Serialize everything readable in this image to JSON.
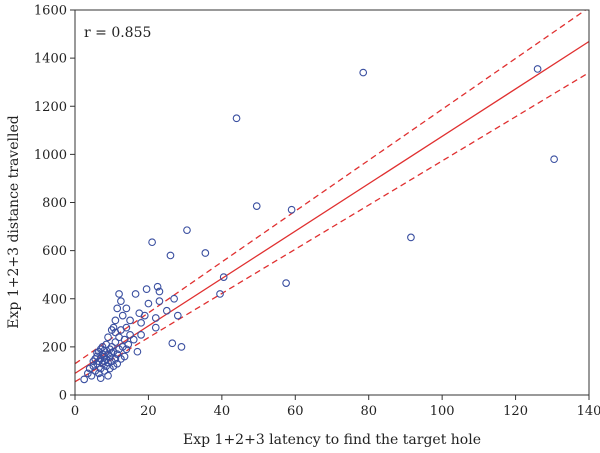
{
  "chart_data": {
    "type": "scatter",
    "xlabel": "Exp 1+2+3 latency to find the target hole",
    "ylabel": "Exp 1+2+3 distance travelled",
    "annotation": "r = 0.855",
    "xlim": [
      0,
      140
    ],
    "ylim": [
      0,
      1600
    ],
    "xticks": [
      0,
      20,
      40,
      60,
      80,
      100,
      120,
      140
    ],
    "yticks": [
      0,
      200,
      400,
      600,
      800,
      1000,
      1200,
      1400,
      1600
    ],
    "grid": false,
    "colors": {
      "points": "#3a4fa0",
      "fit": "#e03030"
    },
    "fit_line": {
      "slope": 9.85,
      "intercept": 90
    },
    "confidence_upper": [
      [
        0,
        130
      ],
      [
        140,
        1610
      ]
    ],
    "confidence_lower": [
      [
        0,
        55
      ],
      [
        140,
        1340
      ]
    ],
    "points": [
      [
        2.5,
        65
      ],
      [
        3.5,
        90
      ],
      [
        4,
        110
      ],
      [
        4.5,
        80
      ],
      [
        5,
        120
      ],
      [
        5,
        140
      ],
      [
        5.5,
        100
      ],
      [
        5.5,
        150
      ],
      [
        6,
        130
      ],
      [
        6,
        160
      ],
      [
        6,
        175
      ],
      [
        6.5,
        90
      ],
      [
        6.5,
        140
      ],
      [
        6.5,
        180
      ],
      [
        7,
        70
      ],
      [
        7,
        110
      ],
      [
        7,
        150
      ],
      [
        7,
        190
      ],
      [
        7.5,
        130
      ],
      [
        7.5,
        170
      ],
      [
        7.5,
        200
      ],
      [
        8,
        100
      ],
      [
        8,
        140
      ],
      [
        8,
        160
      ],
      [
        8,
        185
      ],
      [
        8.5,
        120
      ],
      [
        8.5,
        150
      ],
      [
        8.5,
        210
      ],
      [
        9,
        80
      ],
      [
        9,
        135
      ],
      [
        9,
        170
      ],
      [
        9,
        240
      ],
      [
        9.5,
        110
      ],
      [
        9.5,
        160
      ],
      [
        9.5,
        190
      ],
      [
        10,
        140
      ],
      [
        10,
        175
      ],
      [
        10,
        200
      ],
      [
        10,
        270
      ],
      [
        10.5,
        120
      ],
      [
        10.5,
        180
      ],
      [
        10.5,
        280
      ],
      [
        11,
        150
      ],
      [
        11,
        220
      ],
      [
        11,
        260
      ],
      [
        11,
        310
      ],
      [
        11.5,
        130
      ],
      [
        11.5,
        170
      ],
      [
        11.5,
        360
      ],
      [
        12,
        190
      ],
      [
        12,
        240
      ],
      [
        12,
        420
      ],
      [
        12.5,
        150
      ],
      [
        12.5,
        270
      ],
      [
        12.5,
        390
      ],
      [
        13,
        200
      ],
      [
        13,
        330
      ],
      [
        13.5,
        160
      ],
      [
        13.5,
        230
      ],
      [
        14,
        190
      ],
      [
        14,
        280
      ],
      [
        14,
        360
      ],
      [
        14.5,
        210
      ],
      [
        15,
        250
      ],
      [
        15,
        310
      ],
      [
        16,
        230
      ],
      [
        16.5,
        420
      ],
      [
        17,
        180
      ],
      [
        17.5,
        340
      ],
      [
        18,
        250
      ],
      [
        18,
        300
      ],
      [
        19,
        330
      ],
      [
        19.5,
        440
      ],
      [
        20,
        380
      ],
      [
        21,
        635
      ],
      [
        22,
        280
      ],
      [
        22,
        320
      ],
      [
        22.5,
        450
      ],
      [
        23,
        390
      ],
      [
        23,
        430
      ],
      [
        25,
        350
      ],
      [
        26,
        580
      ],
      [
        26.5,
        215
      ],
      [
        27,
        400
      ],
      [
        28,
        330
      ],
      [
        29,
        200
      ],
      [
        30.5,
        685
      ],
      [
        35.5,
        590
      ],
      [
        39.5,
        420
      ],
      [
        40.5,
        490
      ],
      [
        44,
        1150
      ],
      [
        49.5,
        785
      ],
      [
        57.5,
        465
      ],
      [
        59,
        770
      ],
      [
        78.5,
        1340
      ],
      [
        91.5,
        655
      ],
      [
        126,
        1355
      ],
      [
        130.5,
        980
      ]
    ]
  }
}
